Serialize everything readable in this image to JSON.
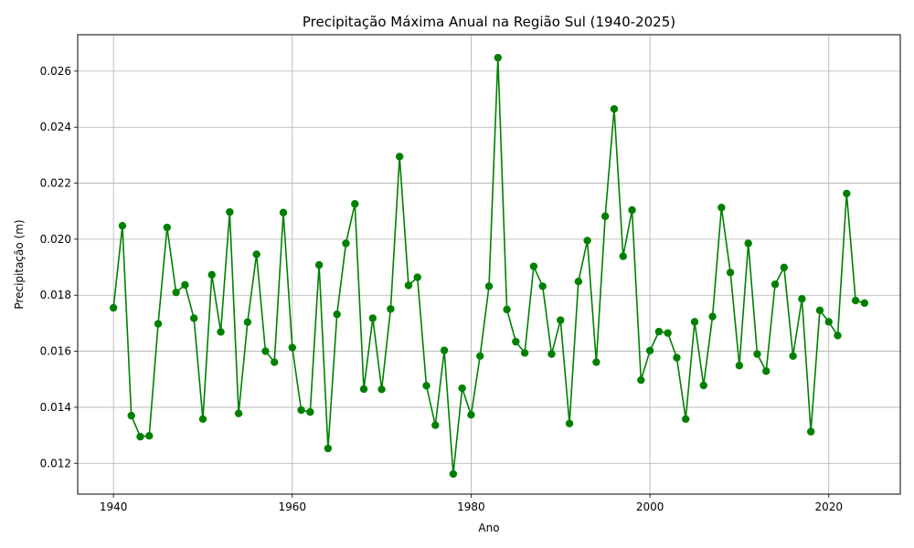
{
  "chart_data": {
    "type": "line",
    "title": "Precipitação Máxima Anual na Região Sul (1940-2025)",
    "xlabel": "Ano",
    "ylabel": "Precipitação (m)",
    "xlim": [
      1936,
      2028
    ],
    "ylim": [
      0.0109,
      0.0273
    ],
    "xticks": [
      1940,
      1960,
      1980,
      2000,
      2020
    ],
    "xtick_labels": [
      "1940",
      "1960",
      "1980",
      "2000",
      "2020"
    ],
    "yticks": [
      0.012,
      0.014,
      0.016,
      0.018,
      0.02,
      0.022,
      0.024,
      0.026
    ],
    "ytick_labels": [
      "0.012",
      "0.014",
      "0.016",
      "0.018",
      "0.020",
      "0.022",
      "0.024",
      "0.026"
    ],
    "grid": true,
    "marker": "circle",
    "colors": {
      "series": "#008000",
      "grid": "#b0b0b0",
      "axes": "#000000"
    },
    "series": [
      {
        "x": [
          1940,
          1941,
          1942,
          1943,
          1944,
          1945,
          1946,
          1947,
          1948,
          1949,
          1950,
          1951,
          1952,
          1953,
          1954,
          1955,
          1956,
          1957,
          1958,
          1959,
          1960,
          1961,
          1962,
          1963,
          1964,
          1965,
          1966,
          1967,
          1968,
          1969,
          1970,
          1971,
          1972,
          1973,
          1974,
          1975,
          1976,
          1977,
          1978,
          1979,
          1980,
          1981,
          1982,
          1983,
          1984,
          1985,
          1986,
          1987,
          1988,
          1989,
          1990,
          1991,
          1992,
          1993,
          1994,
          1995,
          1996,
          1997,
          1998,
          1999,
          2000,
          2001,
          2002,
          2003,
          2004,
          2005,
          2006,
          2007,
          2008,
          2009,
          2010,
          2011,
          2012,
          2013,
          2014,
          2015,
          2016,
          2017,
          2018,
          2019,
          2020,
          2021,
          2022,
          2023,
          2024
        ],
        "y": [
          0.01755,
          0.02048,
          0.0137,
          0.01295,
          0.01298,
          0.01698,
          0.02042,
          0.0181,
          0.01837,
          0.01718,
          0.01358,
          0.01873,
          0.01669,
          0.02097,
          0.01378,
          0.01704,
          0.01946,
          0.016,
          0.01561,
          0.02095,
          0.01613,
          0.0139,
          0.01383,
          0.01908,
          0.01253,
          0.01732,
          0.01985,
          0.02126,
          0.01465,
          0.01718,
          0.01464,
          0.01751,
          0.02295,
          0.01835,
          0.01864,
          0.01477,
          0.01336,
          0.01603,
          0.01162,
          0.01468,
          0.01373,
          0.01583,
          0.01832,
          0.02648,
          0.01749,
          0.01634,
          0.01594,
          0.01903,
          0.01832,
          0.0159,
          0.01711,
          0.01342,
          0.01849,
          0.01995,
          0.01561,
          0.02082,
          0.02465,
          0.01939,
          0.02104,
          0.01497,
          0.01602,
          0.0167,
          0.01665,
          0.01577,
          0.01358,
          0.01705,
          0.01478,
          0.01724,
          0.02113,
          0.01881,
          0.01549,
          0.01985,
          0.0159,
          0.01529,
          0.01839,
          0.01899,
          0.01583,
          0.01787,
          0.01313,
          0.01746,
          0.01705,
          0.01656,
          0.02163,
          0.01781,
          0.01772
        ]
      }
    ]
  }
}
